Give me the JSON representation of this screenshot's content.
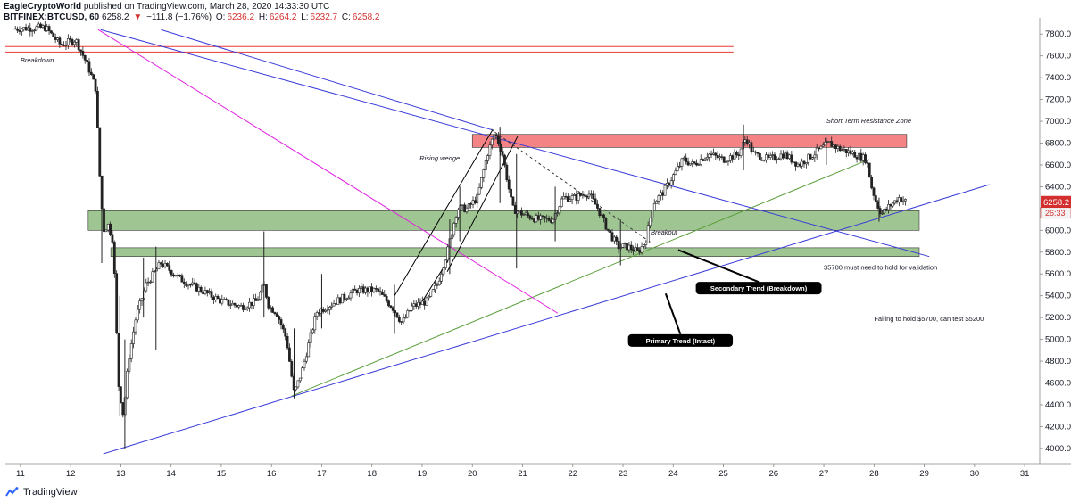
{
  "header": {
    "author": "EagleCryptoWorld",
    "published": "published on TradingView.com, March 28, 2020 14:33:30 UTC",
    "symbol": "BITFINEX:BTCUSD, 60",
    "last": "6258.2",
    "arrow": "▼",
    "change": "−111.8 (−1.76%)",
    "o_label": "O:",
    "o_value": "6236.2",
    "h_label": "H:",
    "h_value": "6264.2",
    "l_label": "L:",
    "l_value": "6232.7",
    "c_label": "C:",
    "c_value": "6258.2"
  },
  "footer": {
    "brand": "TradingView"
  },
  "chart_data": {
    "type": "candlestick",
    "symbol": "BITFINEX:BTCUSD",
    "interval": "60",
    "ylim": [
      3860,
      7900
    ],
    "xlim": [
      10.7,
      31.3
    ],
    "y_ticks": [
      4000,
      4200,
      4400,
      4600,
      4800,
      5000,
      5200,
      5400,
      5600,
      5800,
      6000,
      6200,
      6400,
      6600,
      6800,
      7000,
      7200,
      7400,
      7600,
      7800
    ],
    "x_ticks": [
      11,
      12,
      13,
      14,
      15,
      16,
      17,
      18,
      19,
      20,
      21,
      22,
      23,
      24,
      25,
      26,
      27,
      28,
      29,
      30,
      31
    ],
    "grid": false,
    "price_path": [
      [
        10.9,
        7850
      ],
      [
        11.5,
        7860
      ],
      [
        11.8,
        7700
      ],
      [
        12.1,
        7750
      ],
      [
        12.35,
        7500
      ],
      [
        12.5,
        7300
      ],
      [
        12.58,
        6500
      ],
      [
        12.65,
        6000
      ],
      [
        12.75,
        6050
      ],
      [
        12.85,
        5900
      ],
      [
        12.95,
        4600
      ],
      [
        13.05,
        4300
      ],
      [
        13.15,
        4800
      ],
      [
        13.3,
        5200
      ],
      [
        13.5,
        5500
      ],
      [
        13.8,
        5700
      ],
      [
        14.2,
        5550
      ],
      [
        14.6,
        5450
      ],
      [
        15.0,
        5350
      ],
      [
        15.4,
        5300
      ],
      [
        15.7,
        5350
      ],
      [
        15.85,
        5500
      ],
      [
        15.95,
        5300
      ],
      [
        16.1,
        5250
      ],
      [
        16.3,
        5000
      ],
      [
        16.45,
        4500
      ],
      [
        16.6,
        4700
      ],
      [
        16.9,
        5250
      ],
      [
        17.3,
        5350
      ],
      [
        17.7,
        5450
      ],
      [
        18.1,
        5450
      ],
      [
        18.4,
        5300
      ],
      [
        18.6,
        5150
      ],
      [
        18.8,
        5300
      ],
      [
        19.1,
        5350
      ],
      [
        19.3,
        5500
      ],
      [
        19.5,
        5800
      ],
      [
        19.7,
        6200
      ],
      [
        19.9,
        6200
      ],
      [
        20.1,
        6300
      ],
      [
        20.3,
        6700
      ],
      [
        20.45,
        6900
      ],
      [
        20.6,
        6700
      ],
      [
        20.8,
        6200
      ],
      [
        21.0,
        6150
      ],
      [
        21.3,
        6100
      ],
      [
        21.6,
        6100
      ],
      [
        21.8,
        6300
      ],
      [
        22.05,
        6300
      ],
      [
        22.3,
        6350
      ],
      [
        22.5,
        6200
      ],
      [
        22.7,
        6000
      ],
      [
        22.9,
        5850
      ],
      [
        23.1,
        5850
      ],
      [
        23.3,
        5800
      ],
      [
        23.45,
        5900
      ],
      [
        23.6,
        6250
      ],
      [
        23.8,
        6350
      ],
      [
        24.0,
        6500
      ],
      [
        24.2,
        6650
      ],
      [
        24.4,
        6600
      ],
      [
        24.7,
        6700
      ],
      [
        25.0,
        6650
      ],
      [
        25.3,
        6700
      ],
      [
        25.45,
        6850
      ],
      [
        25.6,
        6700
      ],
      [
        25.9,
        6650
      ],
      [
        26.2,
        6700
      ],
      [
        26.5,
        6600
      ],
      [
        26.8,
        6700
      ],
      [
        27.1,
        6800
      ],
      [
        27.3,
        6750
      ],
      [
        27.6,
        6700
      ],
      [
        27.85,
        6650
      ],
      [
        27.95,
        6400
      ],
      [
        28.05,
        6250
      ],
      [
        28.15,
        6150
      ],
      [
        28.3,
        6220
      ],
      [
        28.5,
        6300
      ],
      [
        28.65,
        6258
      ]
    ],
    "spikes": [
      {
        "x": 12.62,
        "high": 6200,
        "low": 5700
      },
      {
        "x": 12.98,
        "high": 5400,
        "low": 4300
      },
      {
        "x": 13.08,
        "high": 5000,
        "low": 4000
      },
      {
        "x": 13.45,
        "high": 5750,
        "low": 5200
      },
      {
        "x": 13.7,
        "high": 5850,
        "low": 4900
      },
      {
        "x": 15.85,
        "high": 5990,
        "low": 5200
      },
      {
        "x": 16.45,
        "high": 5100,
        "low": 4460
      },
      {
        "x": 17.0,
        "high": 5600,
        "low": 5100
      },
      {
        "x": 18.45,
        "high": 5500,
        "low": 5050
      },
      {
        "x": 19.55,
        "high": 6100,
        "low": 5600
      },
      {
        "x": 19.75,
        "high": 6400,
        "low": 5900
      },
      {
        "x": 20.55,
        "high": 6950,
        "low": 6250
      },
      {
        "x": 20.88,
        "high": 6700,
        "low": 5650
      },
      {
        "x": 21.65,
        "high": 6400,
        "low": 5900
      },
      {
        "x": 22.95,
        "high": 6100,
        "low": 5680
      },
      {
        "x": 23.4,
        "high": 6150,
        "low": 5750
      },
      {
        "x": 25.4,
        "high": 6970,
        "low": 6550
      },
      {
        "x": 27.05,
        "high": 6850,
        "low": 6600
      },
      {
        "x": 28.1,
        "high": 6300,
        "low": 6080
      }
    ],
    "last_price": 6258.2,
    "last_price_label": "6258.2",
    "countdown_label": "26:33",
    "zones": [
      {
        "color": "#f05a5e",
        "y_top": 6880,
        "y_bottom": 6760,
        "x_start": 20.0,
        "x_end": 28.65
      },
      {
        "color": "#7fb36d",
        "y_top": 6180,
        "y_bottom": 6000,
        "x_start": 12.35,
        "x_end": 28.9
      },
      {
        "color": "#7fb36d",
        "y_top": 5840,
        "y_bottom": 5760,
        "x_start": 12.8,
        "x_end": 28.9
      }
    ],
    "hlines": [
      {
        "y": 7685,
        "x_start": 10.7,
        "x_end": 25.2,
        "color": "#e53935"
      },
      {
        "y": 7635,
        "x_start": 10.7,
        "x_end": 25.2,
        "color": "#e53935"
      }
    ],
    "trendlines": [
      {
        "points": [
          [
            12.6,
            7840
          ],
          [
            29.1,
            5760
          ]
        ],
        "color": "#3b3bd9"
      },
      {
        "points": [
          [
            12.65,
            3950
          ],
          [
            30.3,
            6420
          ]
        ],
        "color": "#3b3bd9"
      },
      {
        "points": [
          [
            13.8,
            7840
          ],
          [
            20.4,
            6920
          ]
        ],
        "color": "#3b3bd9"
      },
      {
        "points": [
          [
            16.4,
            4480
          ],
          [
            27.9,
            6650
          ]
        ],
        "color": "#5a9e3a"
      },
      {
        "points": [
          [
            12.55,
            7840
          ],
          [
            21.7,
            5240
          ]
        ],
        "color": "#e020e0"
      },
      {
        "points": [
          [
            18.45,
            5400
          ],
          [
            20.4,
            6920
          ]
        ],
        "color": "#000000"
      },
      {
        "points": [
          [
            19.5,
            5620
          ],
          [
            20.9,
            6860
          ]
        ],
        "color": "#000000"
      },
      {
        "points": [
          [
            18.95,
            5310
          ],
          [
            19.55,
            5750
          ]
        ],
        "color": "#000000"
      },
      {
        "points": [
          [
            20.45,
            6900
          ],
          [
            23.55,
            5890
          ]
        ],
        "color": "#333333",
        "dashed": true
      }
    ],
    "annotations": [
      {
        "text": "Breakdown",
        "x": 11.0,
        "y": 7540,
        "style": "italic"
      },
      {
        "text": "Rising wedge",
        "x": 18.95,
        "y": 6640,
        "style": "italic"
      },
      {
        "text": "Breakout",
        "x": 23.55,
        "y": 5960,
        "style": "italic"
      },
      {
        "text": "Short Term Resistance Zone",
        "x": 27.05,
        "y": 6985,
        "style": "italic"
      },
      {
        "text": "$5700 must need to hold for validation",
        "x": 27.0,
        "y": 5640,
        "style": "normal"
      },
      {
        "text": "Failing to hold $5700, can test $5200",
        "x": 28.0,
        "y": 5170,
        "style": "normal"
      }
    ],
    "badges": [
      {
        "text": "Secondary Trend (Breakdown)",
        "x": 24.45,
        "y": 5470,
        "arrow_to": [
          24.1,
          5820
        ]
      },
      {
        "text": "Primary Trend (Intact)",
        "x": 23.1,
        "y": 4990,
        "arrow_to": [
          23.85,
          5420
        ]
      }
    ]
  }
}
